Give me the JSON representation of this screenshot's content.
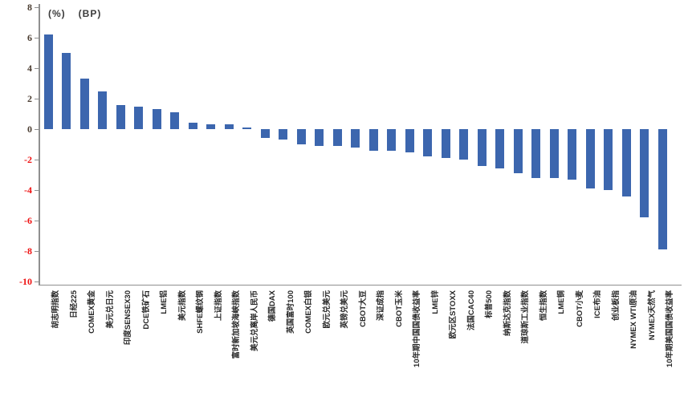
{
  "units": {
    "pct": "(%)",
    "bp": "(BP)"
  },
  "colors": {
    "bar": "#3c66ae",
    "axis": "#8f8f8f",
    "tick_positive": "#4a3c30",
    "tick_negative": "#ee1111",
    "category_label": "#262626"
  },
  "y_axis": {
    "ticks": [
      8,
      6,
      4,
      2,
      0,
      -2,
      -4,
      -6,
      -8,
      -10
    ]
  },
  "chart_data": {
    "type": "bar",
    "title": "",
    "xlabel": "",
    "ylabel": "",
    "annotations": [
      "(%)",
      "(BP)"
    ],
    "ylim": [
      -10,
      8
    ],
    "ytick_step": 2,
    "grid": false,
    "legend": false,
    "categories": [
      "胡志明指数",
      "日经225",
      "COMEX黄金",
      "美元兑日元",
      "印度SENSEX30",
      "DCE铁矿石",
      "LME铝",
      "美元指数",
      "SHFE螺纹钢",
      "上证指数",
      "富时新加坡海峡指数",
      "美元兑离岸人民币",
      "德国DAX",
      "英国富时100",
      "COMEX白银",
      "欧元兑美元",
      "英镑兑美元",
      "CBOT大豆",
      "深证成指",
      "CBOT玉米",
      "10年期中国国债收益率",
      "LME锌",
      "欧元区STOXX",
      "法国CAC40",
      "标普500",
      "纳斯达克指数",
      "道琼斯工业指数",
      "恒生指数",
      "LME铜",
      "CBOT小麦",
      "ICE布油",
      "创业板指",
      "NYMEX WTI原油",
      "NYMEX天然气",
      "10年期美国国债收益率"
    ],
    "values": [
      6.2,
      5.0,
      3.3,
      2.5,
      1.6,
      1.5,
      1.3,
      1.1,
      0.4,
      0.3,
      0.3,
      0.1,
      -0.6,
      -0.7,
      -1.0,
      -1.1,
      -1.1,
      -1.2,
      -1.4,
      -1.4,
      -1.5,
      -1.8,
      -1.9,
      -2.0,
      -2.4,
      -2.6,
      -2.9,
      -3.2,
      -3.2,
      -3.3,
      -3.9,
      -4.0,
      -4.4,
      -5.8,
      -7.9
    ]
  }
}
